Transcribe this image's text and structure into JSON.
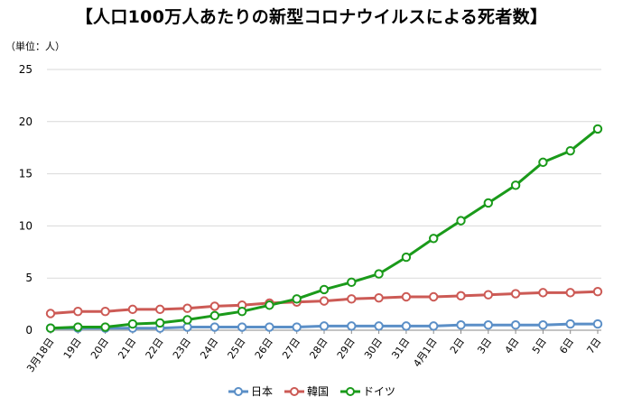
{
  "chart_data": {
    "type": "line",
    "title": "【人口100万人あたりの新型コロナウイルスによる死者数】",
    "ylabel": "（単位：人）",
    "ylim": [
      0,
      25
    ],
    "yticks": [
      "0",
      "5",
      "10",
      "15",
      "20",
      "25"
    ],
    "categories": [
      "3月18日",
      "19日",
      "20日",
      "21日",
      "22日",
      "23日",
      "24日",
      "25日",
      "26日",
      "27日",
      "28日",
      "29日",
      "30日",
      "31日",
      "4月1日",
      "2日",
      "3日",
      "4日",
      "5日",
      "6日",
      "7日"
    ],
    "series": [
      {
        "name": "日本",
        "color": "#5b8fc7",
        "values": [
          0.2,
          0.2,
          0.2,
          0.2,
          0.2,
          0.3,
          0.3,
          0.3,
          0.3,
          0.3,
          0.4,
          0.4,
          0.4,
          0.4,
          0.4,
          0.5,
          0.5,
          0.5,
          0.5,
          0.6,
          0.6
        ]
      },
      {
        "name": "韓国",
        "color": "#cc5a55",
        "values": [
          1.6,
          1.8,
          1.8,
          2.0,
          2.0,
          2.1,
          2.3,
          2.4,
          2.6,
          2.7,
          2.8,
          3.0,
          3.1,
          3.2,
          3.2,
          3.3,
          3.4,
          3.5,
          3.6,
          3.6,
          3.7
        ]
      },
      {
        "name": "ドイツ",
        "color": "#1a9a1a",
        "values": [
          0.2,
          0.3,
          0.3,
          0.6,
          0.7,
          1.0,
          1.4,
          1.8,
          2.4,
          3.0,
          3.9,
          4.6,
          5.4,
          7.0,
          8.8,
          10.5,
          12.2,
          13.9,
          16.1,
          17.2,
          19.3
        ]
      }
    ],
    "legend_position": "bottom"
  }
}
